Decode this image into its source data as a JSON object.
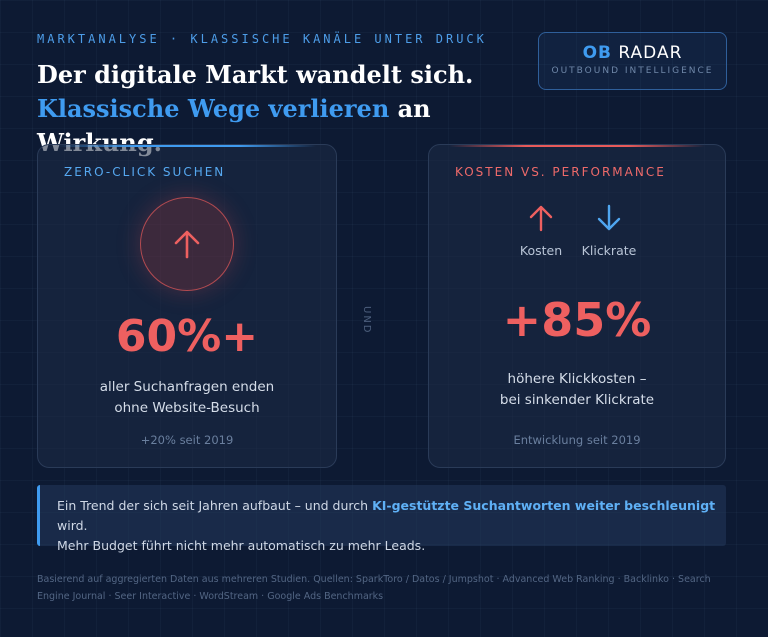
{
  "header": {
    "eyebrow": "MARKTANALYSE · KLASSISCHE KANÄLE UNTER DRUCK",
    "headline_line1": "Der digitale Markt wandelt sich.",
    "headline_accent": "Klassische Wege verlieren",
    "headline_rest": " an Wirkung."
  },
  "brand": {
    "ob": "OB",
    "radar": "RADAR",
    "subtitle": "OUTBOUND INTELLIGENCE"
  },
  "card_left": {
    "label": "ZERO-CLICK SUCHEN",
    "icon": "arrow-up-icon",
    "value": "60%+",
    "desc_line1": "aller Suchanfragen enden",
    "desc_line2": "ohne Website-Besuch",
    "footnote": "+20% seit 2019"
  },
  "separator": "UND",
  "card_right": {
    "label": "KOSTEN VS. PERFORMANCE",
    "trend_up_label": "Kosten",
    "trend_down_label": "Klickrate",
    "value": "+85%",
    "desc_line1": "höhere Klickkosten –",
    "desc_line2": "bei sinkender Klickrate",
    "footnote": "Entwicklung seit 2019"
  },
  "callout": {
    "part1": "Ein Trend der sich seit Jahren aufbaut – und durch ",
    "highlight": "KI-gestützte Suchantworten weiter beschleunigt",
    "part2": " wird.",
    "line2": "Mehr Budget führt nicht mehr automatisch zu mehr Leads."
  },
  "sources": "Basierend auf aggregierten Daten aus mehreren Studien. Quellen: SparkToro / Datos / Jumpshot · Advanced Web Ranking · Backlinko · Search Engine Journal · Seer Interactive · WordStream · Google Ads Benchmarks",
  "colors": {
    "background": "#0d1a33",
    "accent_blue": "#3f9bf0",
    "accent_red": "#ee6060"
  }
}
